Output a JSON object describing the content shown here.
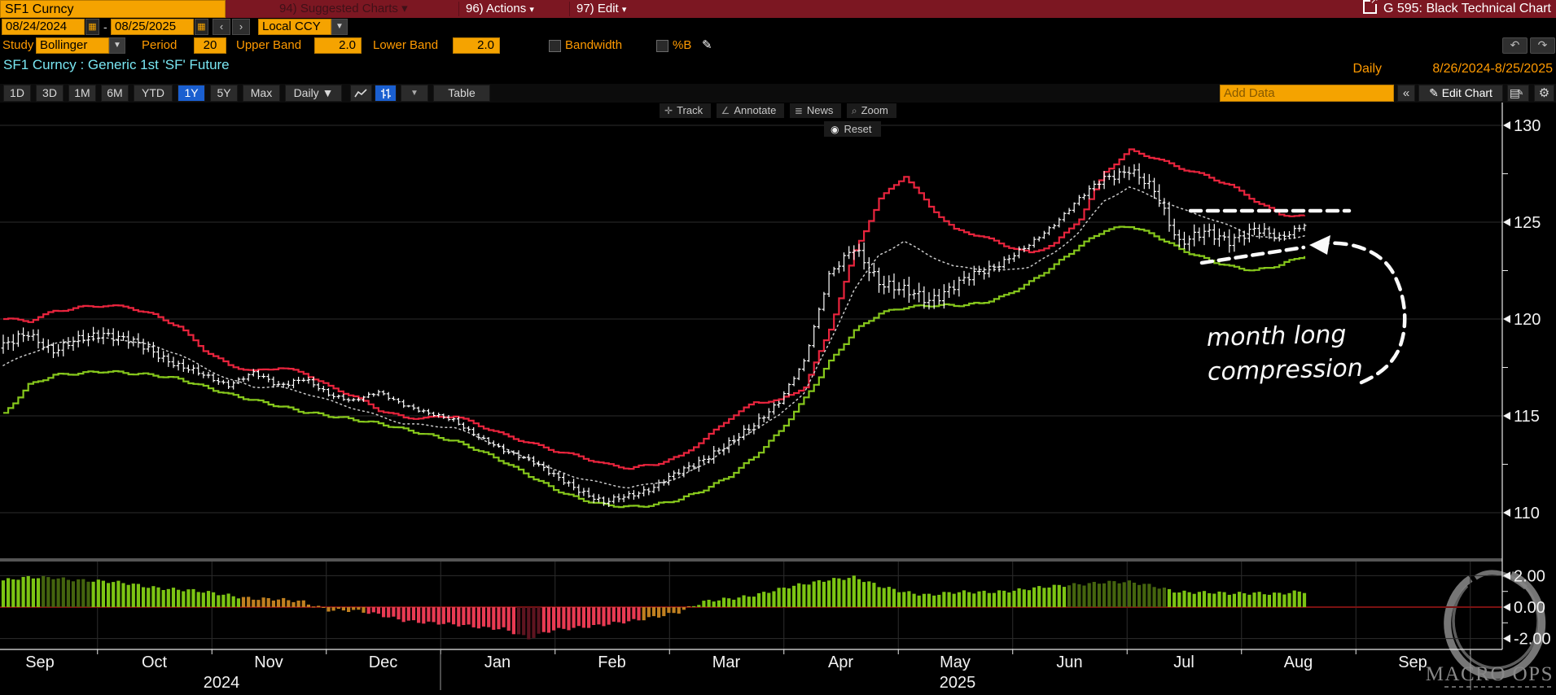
{
  "title_bar": {
    "security_field": "SF1 Curncy",
    "suggested_charts": "94) Suggested Charts",
    "actions": "96) Actions",
    "edit": "97) Edit",
    "chart_title": "G 595: Black Technical Chart"
  },
  "range_bar": {
    "start_date": "08/24/2024",
    "end_date": "08/25/2025",
    "separator": "-",
    "currency": "Local CCY"
  },
  "study_bar": {
    "study_label": "Study",
    "study_value": "Bollinger",
    "period_label": "Period",
    "period_value": "20",
    "upper_label": "Upper Band",
    "upper_value": "2.0",
    "lower_label": "Lower Band",
    "lower_value": "2.0",
    "bandwidth_label": "Bandwidth",
    "bandwidth_checked": false,
    "pctb_label": "%B",
    "pctb_checked": false
  },
  "security_line": {
    "description": "SF1 Curncy : Generic 1st 'SF' Future",
    "frequency": "Daily",
    "date_range": "8/26/2024-8/25/2025"
  },
  "toolbar": {
    "tabs": [
      "1D",
      "3D",
      "1M",
      "6M",
      "YTD",
      "1Y",
      "5Y",
      "Max"
    ],
    "active_tab": "1Y",
    "frequency_button": "Daily ▼",
    "table_button": "Table",
    "add_data_placeholder": "Add Data",
    "collapse_button": "«",
    "edit_chart_button": "Edit Chart"
  },
  "chart_overlay": {
    "track": "Track",
    "annotate": "Annotate",
    "news": "News",
    "zoom": "Zoom",
    "reset": "Reset"
  },
  "annotation": {
    "line1": "month long",
    "line2": "compression"
  },
  "watermark": {
    "brand": "MACRO OPS"
  },
  "chart_data": {
    "type": "candlestick",
    "title": "SF1 Curncy Generic 1st 'SF' Future, Bollinger Bands (Period 20, Bands ±2.0) with %B subpanel",
    "price_axis": {
      "ticks": [
        130,
        125,
        120,
        115,
        110
      ],
      "range_shown": [
        107.5,
        131.5
      ],
      "side": "right"
    },
    "pctb_axis": {
      "ticks": [
        2.0,
        0.0,
        -2.0
      ],
      "labels": [
        "2.00",
        "0.00",
        "-2.00"
      ]
    },
    "x_axis": {
      "months": [
        "Sep",
        "Oct",
        "Nov",
        "Dec",
        "Jan",
        "Feb",
        "Mar",
        "Apr",
        "May",
        "Jun",
        "Jul",
        "Aug",
        "Sep"
      ],
      "years": [
        "2024",
        "2025"
      ]
    },
    "legend": {
      "price_bars": "white OHLC bars",
      "upper_band": "red",
      "lower_band": "green",
      "middle_band": "white dotted"
    },
    "weekly_anchors": {
      "note": "estimated weekly values, w0 = week of 8/26/2024 through w52 = 8/25/2025",
      "close": [
        118.6,
        119.2,
        118.4,
        118.9,
        119.3,
        118.9,
        118.3,
        117.6,
        117.1,
        116.6,
        117.2,
        116.6,
        116.9,
        116.1,
        115.8,
        116.2,
        115.6,
        115.1,
        114.8,
        113.9,
        113.2,
        112.8,
        111.9,
        111.2,
        110.5,
        110.9,
        111.3,
        112.1,
        112.8,
        113.5,
        114.6,
        115.7,
        117.8,
        122.3,
        123.6,
        122.0,
        121.4,
        121.0,
        121.7,
        122.4,
        123.0,
        123.8,
        124.9,
        126.2,
        127.3,
        127.7,
        126.6,
        124.0,
        124.4,
        124.1,
        124.6,
        124.2,
        124.9
      ],
      "upper_band": [
        120.0,
        119.9,
        120.4,
        120.6,
        120.7,
        120.6,
        120.2,
        119.6,
        118.4,
        117.6,
        117.3,
        117.5,
        117.2,
        116.5,
        116.0,
        115.3,
        114.9,
        114.9,
        115.0,
        114.5,
        114.0,
        113.6,
        113.2,
        112.9,
        112.5,
        112.3,
        112.5,
        112.9,
        113.8,
        114.9,
        115.7,
        115.8,
        116.5,
        119.5,
        123.5,
        126.2,
        127.4,
        125.8,
        124.6,
        124.3,
        123.8,
        123.4,
        123.9,
        125.2,
        127.6,
        128.7,
        128.3,
        127.8,
        127.4,
        126.9,
        126.1,
        125.4,
        125.3
      ],
      "lower_band": [
        115.1,
        116.6,
        117.1,
        117.2,
        117.3,
        117.2,
        117.1,
        116.9,
        116.5,
        116.1,
        115.8,
        115.5,
        115.2,
        115.0,
        114.8,
        114.6,
        114.3,
        114.0,
        113.7,
        113.2,
        112.6,
        111.9,
        111.2,
        110.7,
        110.4,
        110.3,
        110.4,
        110.7,
        111.2,
        111.9,
        112.9,
        114.2,
        115.9,
        117.8,
        119.4,
        120.3,
        120.6,
        120.7,
        120.7,
        120.8,
        121.2,
        121.9,
        122.8,
        123.8,
        124.6,
        124.8,
        124.3,
        123.6,
        123.1,
        122.7,
        122.5,
        122.8,
        123.3
      ],
      "middle_band": [
        117.6,
        118.2,
        118.7,
        118.9,
        119.0,
        118.9,
        118.6,
        118.2,
        117.5,
        116.9,
        116.5,
        116.5,
        116.2,
        115.8,
        115.4,
        115.0,
        114.6,
        114.5,
        114.4,
        113.9,
        113.3,
        112.8,
        112.2,
        111.8,
        111.5,
        111.3,
        111.5,
        111.8,
        112.5,
        113.4,
        114.3,
        115.0,
        116.2,
        118.7,
        121.5,
        123.3,
        124.0,
        123.3,
        122.7,
        122.6,
        122.5,
        122.7,
        123.4,
        124.5,
        126.1,
        126.8,
        126.3,
        125.7,
        125.3,
        124.8,
        124.3,
        124.1,
        124.3
      ],
      "pctb": [
        1.7,
        1.85,
        1.9,
        1.75,
        1.6,
        1.5,
        1.3,
        1.1,
        0.95,
        0.8,
        0.55,
        0.45,
        0.35,
        -0.15,
        -0.25,
        -0.5,
        -0.8,
        -1.0,
        -1.15,
        -1.25,
        -1.35,
        -2.05,
        -1.45,
        -1.25,
        -1.15,
        -0.95,
        -0.6,
        -0.3,
        0.3,
        0.55,
        0.8,
        1.1,
        1.45,
        1.8,
        1.9,
        1.3,
        1.0,
        0.8,
        0.9,
        0.95,
        1.05,
        1.15,
        1.3,
        1.5,
        1.6,
        1.55,
        1.35,
        1.0,
        0.9,
        0.85,
        0.95,
        0.85,
        0.95
      ],
      "pctb_color": [
        "g",
        "g",
        "d",
        "d",
        "g",
        "g",
        "g",
        "g",
        "g",
        "g",
        "o",
        "o",
        "o",
        "o",
        "o",
        "r",
        "r",
        "r",
        "r",
        "r",
        "r",
        "m",
        "r",
        "r",
        "r",
        "r",
        "o",
        "o",
        "g",
        "g",
        "g",
        "g",
        "g",
        "g",
        "g",
        "g",
        "g",
        "g",
        "g",
        "g",
        "g",
        "g",
        "g",
        "d",
        "d",
        "d",
        "d",
        "g",
        "g",
        "g",
        "g",
        "g",
        "g"
      ]
    },
    "colors": {
      "upper_band": "#e9243d",
      "lower_band": "#86c71c",
      "middle_band": "#c9c9c9",
      "price_bars": "#ffffff",
      "hist_green": "#7cc413",
      "hist_dark_green": "#44640e",
      "hist_orange": "#c08020",
      "hist_red": "#e83a52",
      "hist_maroon": "#5e1420",
      "zero_line": "#7a1212",
      "grid": "#2d2d2d",
      "axis": "#e8e8e8"
    }
  }
}
